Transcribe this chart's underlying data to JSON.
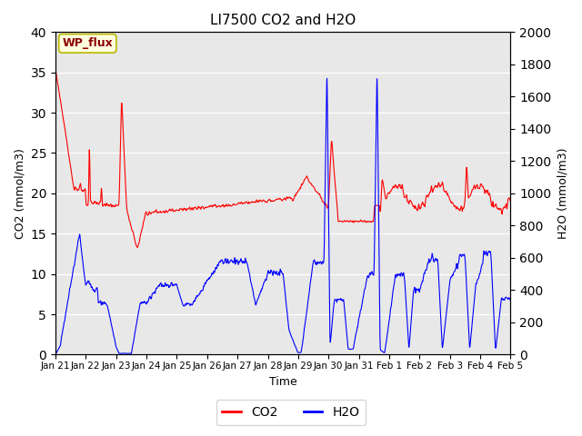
{
  "title": "LI7500 CO2 and H2O",
  "xlabel": "Time",
  "ylabel_left": "CO2 (mmol/m3)",
  "ylabel_right": "H2O (mmol/m3)",
  "ylim_left": [
    0,
    40
  ],
  "ylim_right": [
    0,
    2000
  ],
  "yticks_left": [
    0,
    5,
    10,
    15,
    20,
    25,
    30,
    35,
    40
  ],
  "yticks_right": [
    0,
    200,
    400,
    600,
    800,
    1000,
    1200,
    1400,
    1600,
    1800,
    2000
  ],
  "bg_color": "#e8e8e8",
  "legend_label_co2": "CO2",
  "legend_label_h2o": "H2O",
  "wp_flux_label": "WP_flux",
  "co2_color": "red",
  "h2o_color": "blue",
  "xtick_labels": [
    "Jan 21",
    "Jan 22",
    "Jan 23",
    "Jan 24",
    "Jan 25",
    "Jan 26",
    "Jan 27",
    "Jan 28",
    "Jan 29",
    "Jan 30",
    "Jan 31",
    "Feb 1",
    "Feb 2",
    "Feb 3",
    "Feb 4",
    "Feb 5"
  ],
  "n_points": 5000
}
